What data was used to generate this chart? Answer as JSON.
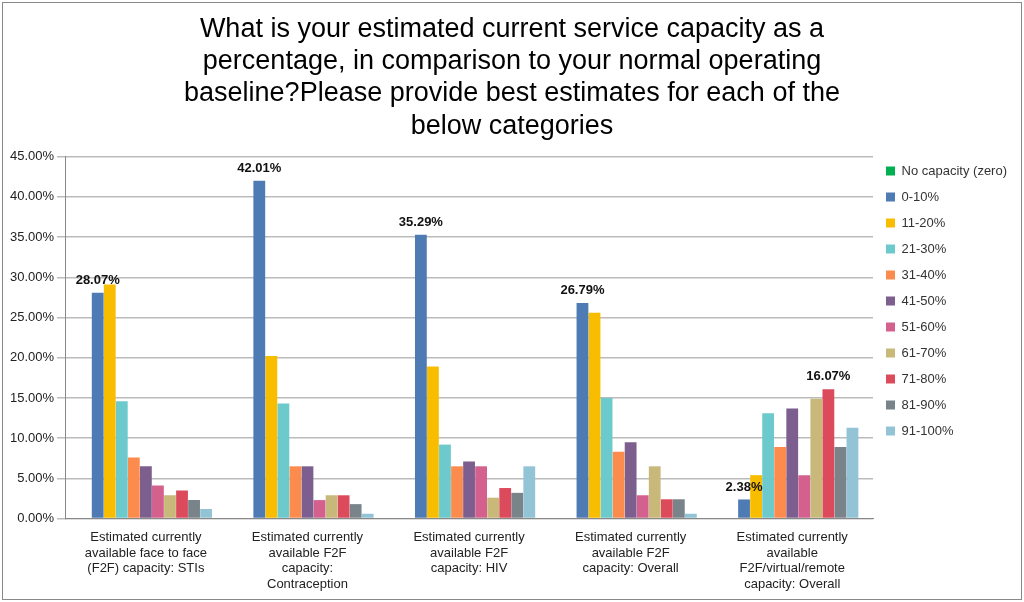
{
  "chart_data": {
    "type": "bar",
    "title": "What is your estimated current service capacity as a percentage, in comparison to your normal operating baseline?Please provide best estimates for each of the below categories",
    "categories": [
      "Estimated currently available face to face (F2F) capacity: STIs",
      "Estimated currently available F2F capacity: Contraception",
      "Estimated currently available F2F capacity: HIV",
      "Estimated currently available F2F capacity: Overall",
      "Estimated currently available F2F/virtual/remote capacity: Overall"
    ],
    "series": [
      {
        "name": "No capacity (zero)",
        "color": "#00b050",
        "values": [
          0,
          0,
          0,
          0,
          0
        ]
      },
      {
        "name": "0-10%",
        "color": "#4f7bb5",
        "values": [
          28.07,
          42.01,
          35.29,
          26.79,
          2.38
        ],
        "value_labels": [
          "28.07%",
          "42.01%",
          "35.29%",
          "26.79%",
          "2.38%"
        ]
      },
      {
        "name": "11-20%",
        "color": "#f9bd00",
        "values": [
          29.1,
          20.2,
          18.9,
          25.6,
          5.4
        ]
      },
      {
        "name": "21-30%",
        "color": "#6ccacd",
        "values": [
          14.6,
          14.3,
          9.2,
          15.0,
          13.1
        ]
      },
      {
        "name": "31-40%",
        "color": "#fc8b4e",
        "values": [
          7.6,
          6.5,
          6.5,
          8.3,
          8.9
        ]
      },
      {
        "name": "41-50%",
        "color": "#7d5f8f",
        "values": [
          6.5,
          6.5,
          7.1,
          9.5,
          13.7
        ]
      },
      {
        "name": "51-60%",
        "color": "#d4608e",
        "values": [
          4.1,
          2.3,
          6.5,
          2.9,
          5.4
        ]
      },
      {
        "name": "61-70%",
        "color": "#c8b87a",
        "values": [
          2.9,
          2.9,
          2.6,
          6.5,
          14.9
        ]
      },
      {
        "name": "71-80%",
        "color": "#dc4b5c",
        "values": [
          3.5,
          2.9,
          3.8,
          2.4,
          16.07
        ],
        "value_labels": [
          null,
          null,
          null,
          null,
          "16.07%"
        ]
      },
      {
        "name": "81-90%",
        "color": "#79838a",
        "values": [
          2.3,
          1.8,
          3.2,
          2.4,
          8.9
        ]
      },
      {
        "name": "91-100%",
        "color": "#93c4d6",
        "values": [
          1.2,
          0.6,
          6.5,
          0.6,
          11.3
        ]
      }
    ],
    "ylim": [
      0,
      45
    ],
    "yticks": [
      {
        "value": 0,
        "label": "0.00%"
      },
      {
        "value": 5,
        "label": "5.00%"
      },
      {
        "value": 10,
        "label": "10.00%"
      },
      {
        "value": 15,
        "label": "15.00%"
      },
      {
        "value": 20,
        "label": "20.00%"
      },
      {
        "value": 25,
        "label": "25.00%"
      },
      {
        "value": 30,
        "label": "30.00%"
      },
      {
        "value": 35,
        "label": "35.00%"
      },
      {
        "value": 40,
        "label": "40.00%"
      },
      {
        "value": 45,
        "label": "45.00%"
      }
    ],
    "grid": "y",
    "legend": "right"
  }
}
